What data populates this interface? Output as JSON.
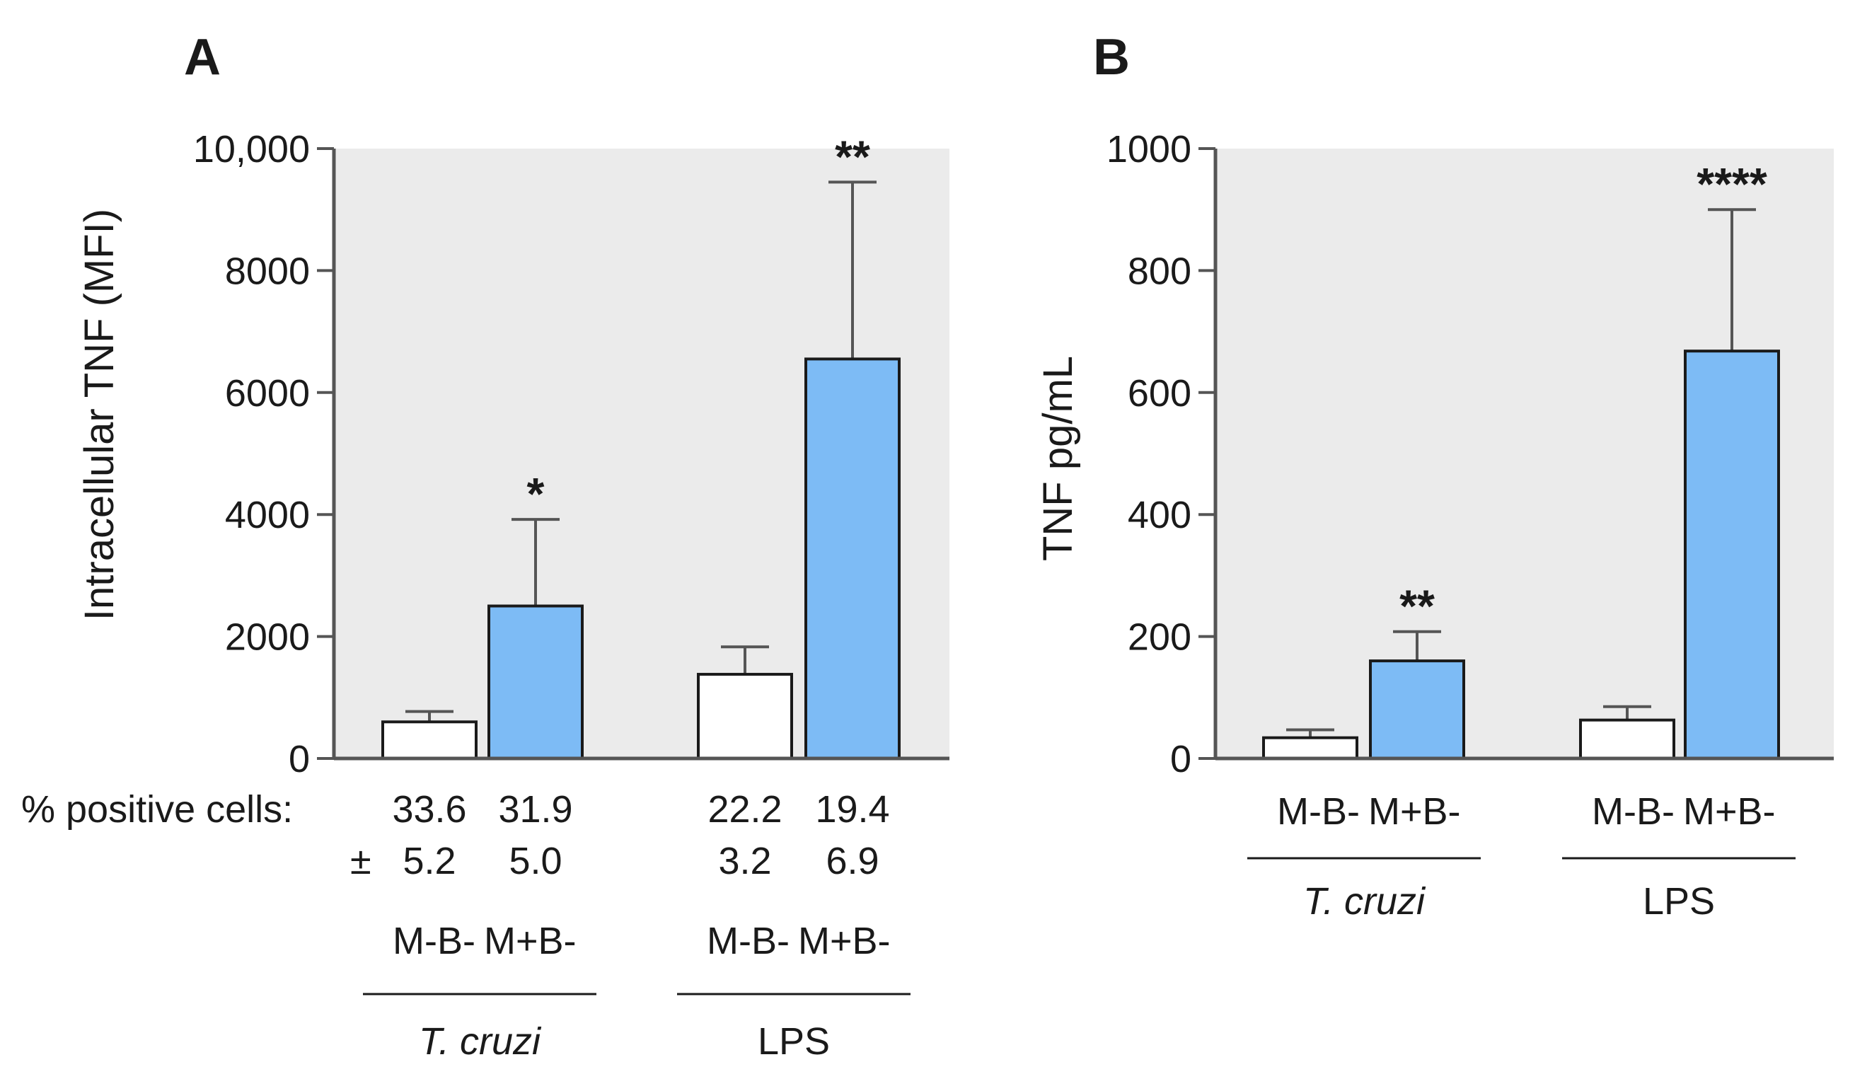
{
  "colors": {
    "panel_bg": "#ebebeb",
    "treated": "#7dbbf5",
    "control": "#ffffff",
    "axis": "#555555",
    "bar_edge": "#1a1a1a",
    "text": "#1a1a1a"
  },
  "chart_data": [
    {
      "type": "bar",
      "panel": "A",
      "ylabel": "Intracellular TNF (MFI)",
      "ylim": [
        0,
        10000
      ],
      "yticks": [
        0,
        2000,
        4000,
        6000,
        8000,
        10000
      ],
      "ytick_labels": [
        "0",
        "2000",
        "4000",
        "6000",
        "8000",
        "10,000"
      ],
      "categories": [
        "M-B-",
        "M+B-",
        "M-B-",
        "M+B-"
      ],
      "groups": [
        {
          "label": "T. cruzi",
          "italic": true
        },
        {
          "label": "LPS",
          "italic": false
        }
      ],
      "values": [
        600,
        2500,
        1380,
        6550
      ],
      "errors": [
        170,
        1420,
        450,
        2900
      ],
      "bar_kind": [
        "control",
        "treated",
        "control",
        "treated"
      ],
      "significance": [
        "",
        "*",
        "",
        "**"
      ],
      "positive_cells": {
        "label": "% positive cells:",
        "pm": "±",
        "means": [
          "33.6",
          "31.9",
          "22.2",
          "19.4"
        ],
        "sds": [
          "5.2",
          "5.0",
          "3.2",
          "6.9"
        ]
      }
    },
    {
      "type": "bar",
      "panel": "B",
      "ylabel": "TNF  pg/mL",
      "ylim": [
        0,
        1000
      ],
      "yticks": [
        0,
        200,
        400,
        600,
        800,
        1000
      ],
      "ytick_labels": [
        "0",
        "200",
        "400",
        "600",
        "800",
        "1000"
      ],
      "categories": [
        "M-B-",
        "M+B-",
        "M-B-",
        "M+B-"
      ],
      "groups": [
        {
          "label": "T. cruzi",
          "italic": true
        },
        {
          "label": "LPS",
          "italic": false
        }
      ],
      "values": [
        34,
        160,
        63,
        668
      ],
      "errors": [
        13,
        48,
        22,
        232
      ],
      "bar_kind": [
        "control",
        "treated",
        "control",
        "treated"
      ],
      "significance": [
        "",
        "**",
        "",
        "****"
      ]
    }
  ]
}
